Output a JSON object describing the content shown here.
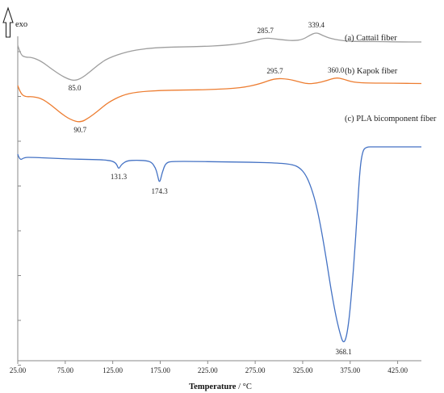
{
  "chart_data": {
    "type": "line",
    "xlabel_bold": "Temperature",
    "xlabel_unit": " / °C",
    "ylabel": "exo",
    "xlim": [
      25,
      450
    ],
    "x_ticks": [
      "25.00",
      "75.00",
      "125.00",
      "175.00",
      "225.00",
      "275.00",
      "325.00",
      "375.00",
      "425.00"
    ],
    "legend": "inline-right",
    "grid": false,
    "series": [
      {
        "name": "(a) Cattail fiber",
        "color": "#9e9e9e",
        "x": [
          25,
          28,
          33,
          40,
          50,
          60,
          70,
          78,
          85,
          92,
          100,
          110,
          120,
          140,
          160,
          180,
          200,
          220,
          240,
          260,
          275,
          285.7,
          295,
          305,
          315,
          325,
          332,
          339.4,
          346,
          355,
          370,
          390,
          410,
          430,
          450
        ],
        "y": [
          46,
          34,
          31,
          31,
          26,
          17,
          9,
          4,
          2,
          5,
          12,
          22,
          30,
          38,
          42,
          43.5,
          44,
          44.5,
          45.5,
          48,
          52,
          55,
          54,
          52.5,
          51.5,
          53,
          58,
          62,
          58,
          54,
          51,
          50.5,
          50.5,
          50,
          50
        ],
        "peaks": [
          {
            "label": "85.0",
            "x": 85.0
          },
          {
            "label": "285.7",
            "x": 285.7
          },
          {
            "label": "339.4",
            "x": 339.4
          }
        ]
      },
      {
        "name": "(b) Kapok fiber",
        "color": "#ed7d31",
        "x": [
          25,
          28,
          33,
          40,
          50,
          60,
          70,
          80,
          90.7,
          100,
          110,
          120,
          135,
          150,
          175,
          200,
          230,
          260,
          280,
          295.7,
          310,
          320,
          330,
          340,
          350,
          360,
          368,
          378,
          395,
          420,
          450
        ],
        "y": [
          -4,
          -14,
          -18,
          -17.5,
          -20,
          -28,
          -38,
          -46,
          -50,
          -44,
          -35,
          -25,
          -16,
          -12,
          -10,
          -9.5,
          -9,
          -7,
          -2,
          5,
          4,
          1,
          -2,
          -1,
          2,
          6,
          4,
          0,
          -1,
          -1,
          -1.5
        ],
        "peaks": [
          {
            "label": "90.7",
            "x": 90.7
          },
          {
            "label": "295.7",
            "x": 295.7
          },
          {
            "label": "360.0",
            "x": 360.0
          }
        ]
      },
      {
        "name": "(c) PLA bicomponent fiber",
        "color": "#4472c4",
        "x": [
          25,
          27,
          32,
          40,
          60,
          80,
          100,
          115,
          125,
          129,
          131.3,
          134,
          140,
          150,
          160,
          166,
          170,
          172,
          174.3,
          177,
          181,
          190,
          210,
          240,
          270,
          300,
          315,
          322,
          328,
          334,
          340,
          345,
          350,
          355,
          360,
          364,
          368.1,
          372,
          376,
          381,
          385,
          388,
          392,
          400,
          420,
          450
        ],
        "y": [
          -89,
          -97,
          -93,
          -93,
          -94,
          -95,
          -95.5,
          -96,
          -97.5,
          -101,
          -108,
          -102,
          -97,
          -96.5,
          -97,
          -99,
          -106,
          -114,
          -126,
          -112,
          -99,
          -98,
          -98,
          -98.5,
          -99,
          -100,
          -102,
          -106,
          -114,
          -130,
          -155,
          -185,
          -220,
          -258,
          -290,
          -310,
          -325,
          -312,
          -270,
          -190,
          -110,
          -85,
          -80,
          -80,
          -80,
          -80
        ],
        "peaks": [
          {
            "label": "131.3",
            "x": 131.3
          },
          {
            "label": "174.3",
            "x": 174.3
          },
          {
            "label": "368.1",
            "x": 368.1
          }
        ]
      }
    ]
  }
}
